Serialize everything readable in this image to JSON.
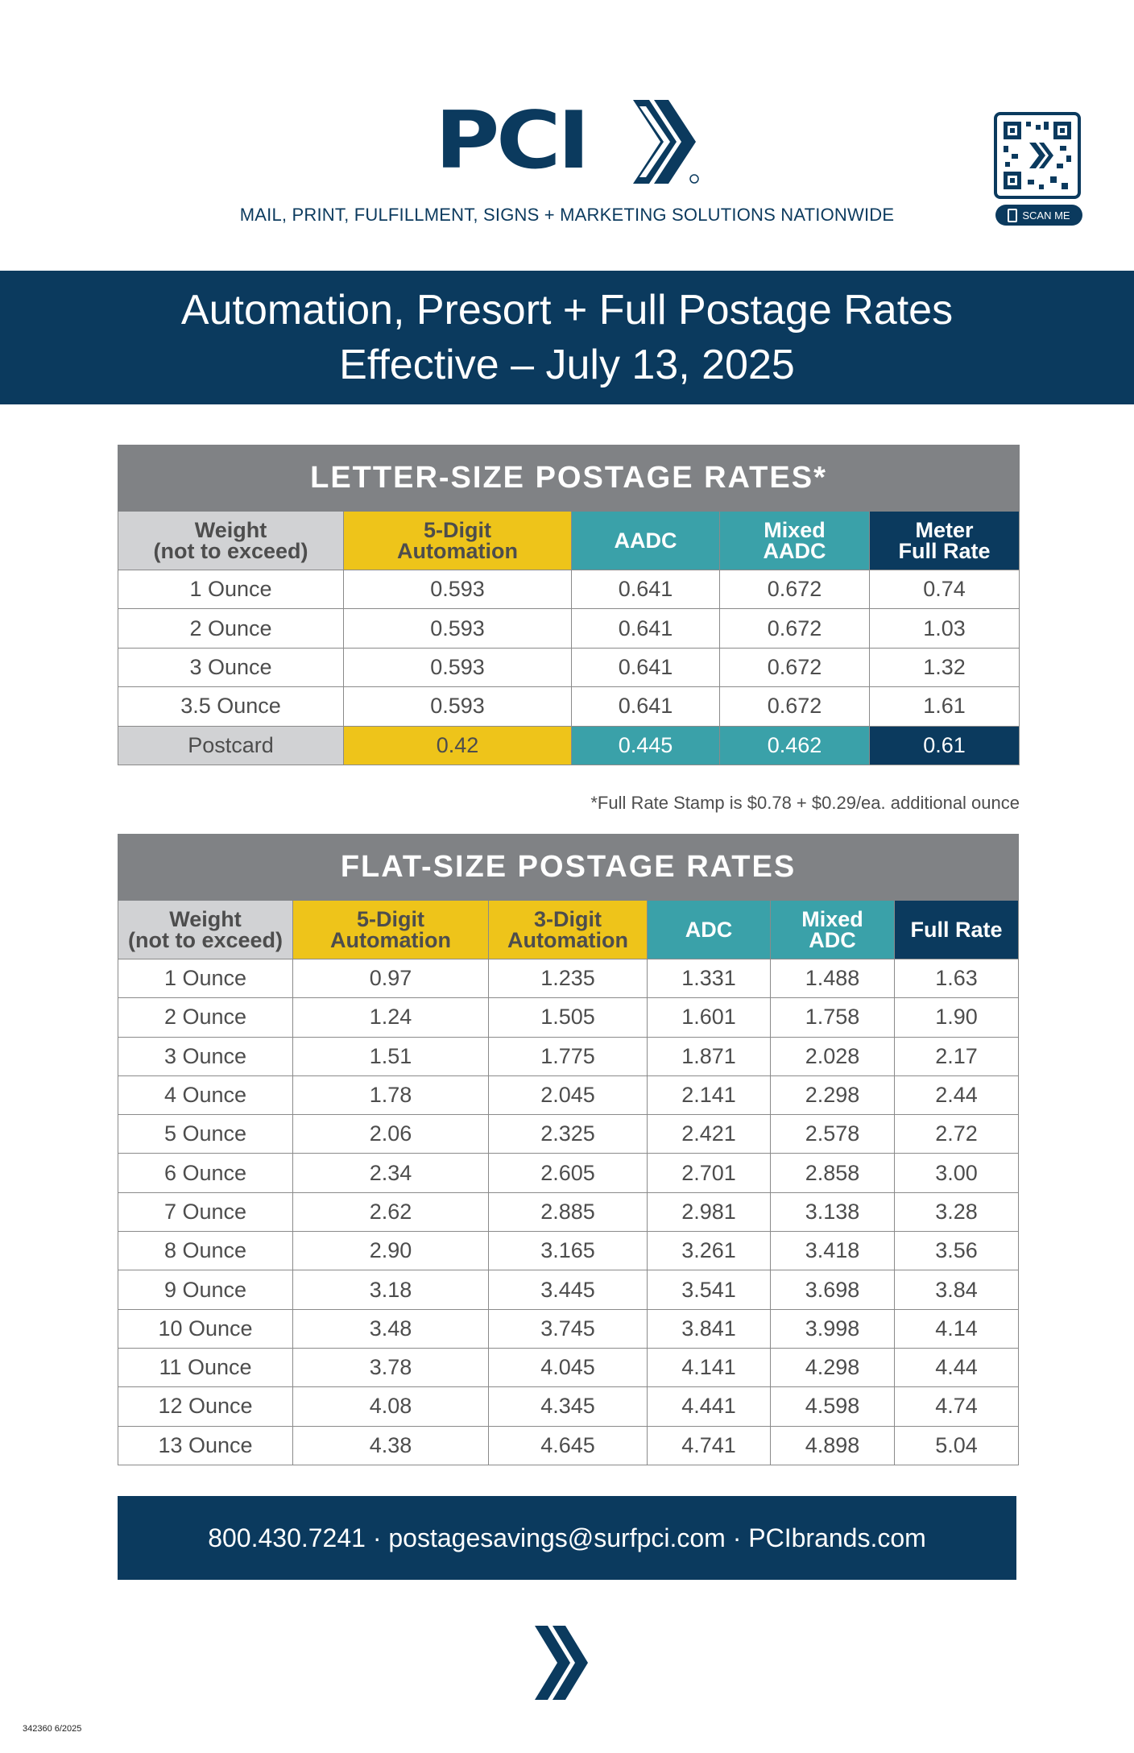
{
  "header": {
    "logo_text": "PCI",
    "tagline": "MAIL, PRINT, FULFILLMENT, SIGNS + MARKETING SOLUTIONS NATIONWIDE",
    "scan_label": "SCAN ME"
  },
  "title": {
    "line1": "Automation, Presort + Full Postage Rates",
    "line2": "Effective – July 13, 2025"
  },
  "colors": {
    "navy": "#0b3a5e",
    "gray": "#808285",
    "light_gray": "#d1d2d4",
    "yellow": "#eec41a",
    "teal": "#3aa1a9"
  },
  "letter_table": {
    "title": "LETTER-SIZE POSTAGE RATES*",
    "headers": [
      [
        "Weight",
        "(not to exceed)"
      ],
      [
        "5-Digit",
        "Automation"
      ],
      [
        "AADC"
      ],
      [
        "Mixed",
        "AADC"
      ],
      [
        "Meter",
        "Full Rate"
      ]
    ],
    "header_colors": [
      "gray",
      "yellow",
      "teal",
      "teal",
      "navy"
    ],
    "rows": [
      [
        "1 Ounce",
        "0.593",
        "0.641",
        "0.672",
        "0.74"
      ],
      [
        "2 Ounce",
        "0.593",
        "0.641",
        "0.672",
        "1.03"
      ],
      [
        "3 Ounce",
        "0.593",
        "0.641",
        "0.672",
        "1.32"
      ],
      [
        "3.5 Ounce",
        "0.593",
        "0.641",
        "0.672",
        "1.61"
      ],
      [
        "Postcard",
        "0.42",
        "0.445",
        "0.462",
        "0.61"
      ]
    ],
    "footnote": "*Full Rate Stamp is $0.78 + $0.29/ea. additional ounce"
  },
  "flat_table": {
    "title": "FLAT-SIZE POSTAGE RATES",
    "headers": [
      [
        "Weight",
        "(not to exceed)"
      ],
      [
        "5-Digit",
        "Automation"
      ],
      [
        "3-Digit",
        "Automation"
      ],
      [
        "ADC"
      ],
      [
        "Mixed",
        "ADC"
      ],
      [
        "Full Rate"
      ]
    ],
    "header_colors": [
      "gray",
      "yellow",
      "yellow",
      "teal",
      "teal",
      "navy"
    ],
    "rows": [
      [
        "1 Ounce",
        "0.97",
        "1.235",
        "1.331",
        "1.488",
        "1.63"
      ],
      [
        "2 Ounce",
        "1.24",
        "1.505",
        "1.601",
        "1.758",
        "1.90"
      ],
      [
        "3 Ounce",
        "1.51",
        "1.775",
        "1.871",
        "2.028",
        "2.17"
      ],
      [
        "4 Ounce",
        "1.78",
        "2.045",
        "2.141",
        "2.298",
        "2.44"
      ],
      [
        "5 Ounce",
        "2.06",
        "2.325",
        "2.421",
        "2.578",
        "2.72"
      ],
      [
        "6 Ounce",
        "2.34",
        "2.605",
        "2.701",
        "2.858",
        "3.00"
      ],
      [
        "7 Ounce",
        "2.62",
        "2.885",
        "2.981",
        "3.138",
        "3.28"
      ],
      [
        "8 Ounce",
        "2.90",
        "3.165",
        "3.261",
        "3.418",
        "3.56"
      ],
      [
        "9 Ounce",
        "3.18",
        "3.445",
        "3.541",
        "3.698",
        "3.84"
      ],
      [
        "10 Ounce",
        "3.48",
        "3.745",
        "3.841",
        "3.998",
        "4.14"
      ],
      [
        "11 Ounce",
        "3.78",
        "4.045",
        "4.141",
        "4.298",
        "4.44"
      ],
      [
        "12 Ounce",
        "4.08",
        "4.345",
        "4.441",
        "4.598",
        "4.74"
      ],
      [
        "13 Ounce",
        "4.38",
        "4.645",
        "4.741",
        "4.898",
        "5.04"
      ]
    ]
  },
  "footer": {
    "contact": "800.430.7241 · postagesavings@surfpci.com · PCIbrands.com"
  },
  "print_code": "342360  6/2025"
}
